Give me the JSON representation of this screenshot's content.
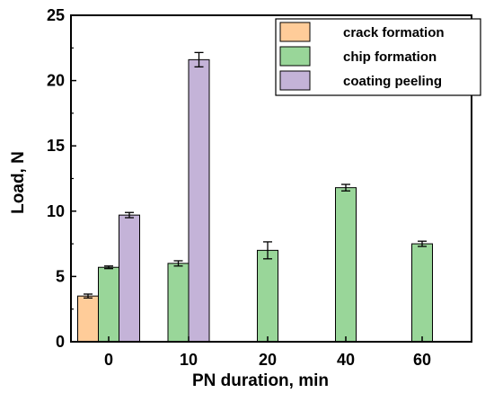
{
  "chart_data": {
    "type": "bar",
    "title": "",
    "xlabel": "PN duration, min",
    "ylabel": "Load, N",
    "ylim": [
      0,
      25
    ],
    "yticks": [
      0,
      5,
      10,
      15,
      20,
      25
    ],
    "categories": [
      "0",
      "10",
      "20",
      "40",
      "60"
    ],
    "grid": false,
    "legend_position": "top-right",
    "series": [
      {
        "name": "crack formation",
        "color": "#FFCC99",
        "values": [
          3.5,
          null,
          null,
          null,
          null
        ],
        "errors": [
          0.15,
          null,
          null,
          null,
          null
        ]
      },
      {
        "name": "chip formation",
        "color": "#99D699",
        "values": [
          5.7,
          6.0,
          7.0,
          11.8,
          7.5
        ],
        "errors": [
          0.1,
          0.2,
          0.65,
          0.25,
          0.2
        ]
      },
      {
        "name": "coating peeling",
        "color": "#C4B3D8",
        "values": [
          9.7,
          21.6,
          null,
          null,
          null
        ],
        "errors": [
          0.2,
          0.55,
          null,
          null,
          null
        ]
      }
    ]
  }
}
